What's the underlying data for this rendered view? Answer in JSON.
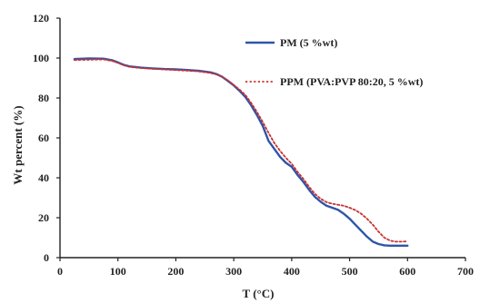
{
  "chart_data": {
    "type": "line",
    "xlabel": "T (°C)",
    "ylabel": "Wt percent (%)",
    "xlim": [
      0,
      700
    ],
    "ylim": [
      0,
      120
    ],
    "xticks": [
      0,
      100,
      200,
      300,
      400,
      500,
      600,
      700
    ],
    "yticks": [
      0,
      20,
      40,
      60,
      80,
      100,
      120
    ],
    "grid": false,
    "legend_position": "top-right",
    "series": [
      {
        "name": "PM (5 %wt)",
        "color": "#2f55a8",
        "style": "solid",
        "x": [
          25,
          50,
          75,
          90,
          100,
          110,
          120,
          140,
          160,
          180,
          200,
          220,
          240,
          260,
          270,
          280,
          290,
          300,
          310,
          320,
          330,
          340,
          350,
          360,
          370,
          380,
          390,
          400,
          410,
          420,
          430,
          440,
          450,
          460,
          470,
          480,
          490,
          500,
          510,
          520,
          530,
          540,
          550,
          560,
          570,
          580,
          590,
          600
        ],
        "y": [
          99.5,
          99.8,
          99.7,
          98.9,
          97.8,
          96.6,
          95.8,
          95.2,
          94.8,
          94.5,
          94.3,
          94.0,
          93.6,
          92.8,
          92.0,
          90.6,
          88.5,
          86.3,
          83.6,
          80.5,
          76.3,
          71.5,
          66.0,
          58.5,
          54.5,
          50.5,
          47.5,
          45.5,
          41.5,
          38.0,
          34.0,
          30.5,
          28.0,
          26.0,
          25.0,
          24.0,
          22.0,
          19.5,
          16.5,
          13.5,
          10.5,
          8.0,
          6.8,
          6.2,
          6.0,
          6.0,
          6.0,
          6.0
        ]
      },
      {
        "name": "PPM (PVA:PVP 80:20, 5 %wt)",
        "color": "#c83232",
        "style": "dotted",
        "x": [
          25,
          50,
          75,
          90,
          100,
          110,
          120,
          140,
          160,
          180,
          200,
          220,
          240,
          260,
          270,
          280,
          290,
          300,
          310,
          320,
          330,
          340,
          350,
          360,
          370,
          380,
          390,
          400,
          410,
          420,
          430,
          440,
          450,
          460,
          470,
          480,
          490,
          500,
          510,
          520,
          530,
          540,
          550,
          560,
          570,
          580,
          590,
          600
        ],
        "y": [
          99.0,
          99.2,
          99.3,
          98.6,
          97.6,
          96.4,
          95.6,
          95.0,
          94.6,
          94.3,
          94.0,
          93.7,
          93.3,
          92.5,
          91.8,
          90.6,
          88.8,
          86.5,
          84.2,
          81.5,
          77.5,
          73.0,
          68.0,
          62.5,
          57.5,
          53.5,
          50.0,
          47.0,
          43.0,
          39.5,
          35.5,
          32.0,
          29.5,
          27.8,
          27.0,
          26.5,
          26.0,
          25.0,
          23.8,
          22.0,
          19.5,
          16.5,
          13.0,
          10.0,
          8.5,
          8.0,
          8.0,
          8.2
        ]
      }
    ]
  }
}
